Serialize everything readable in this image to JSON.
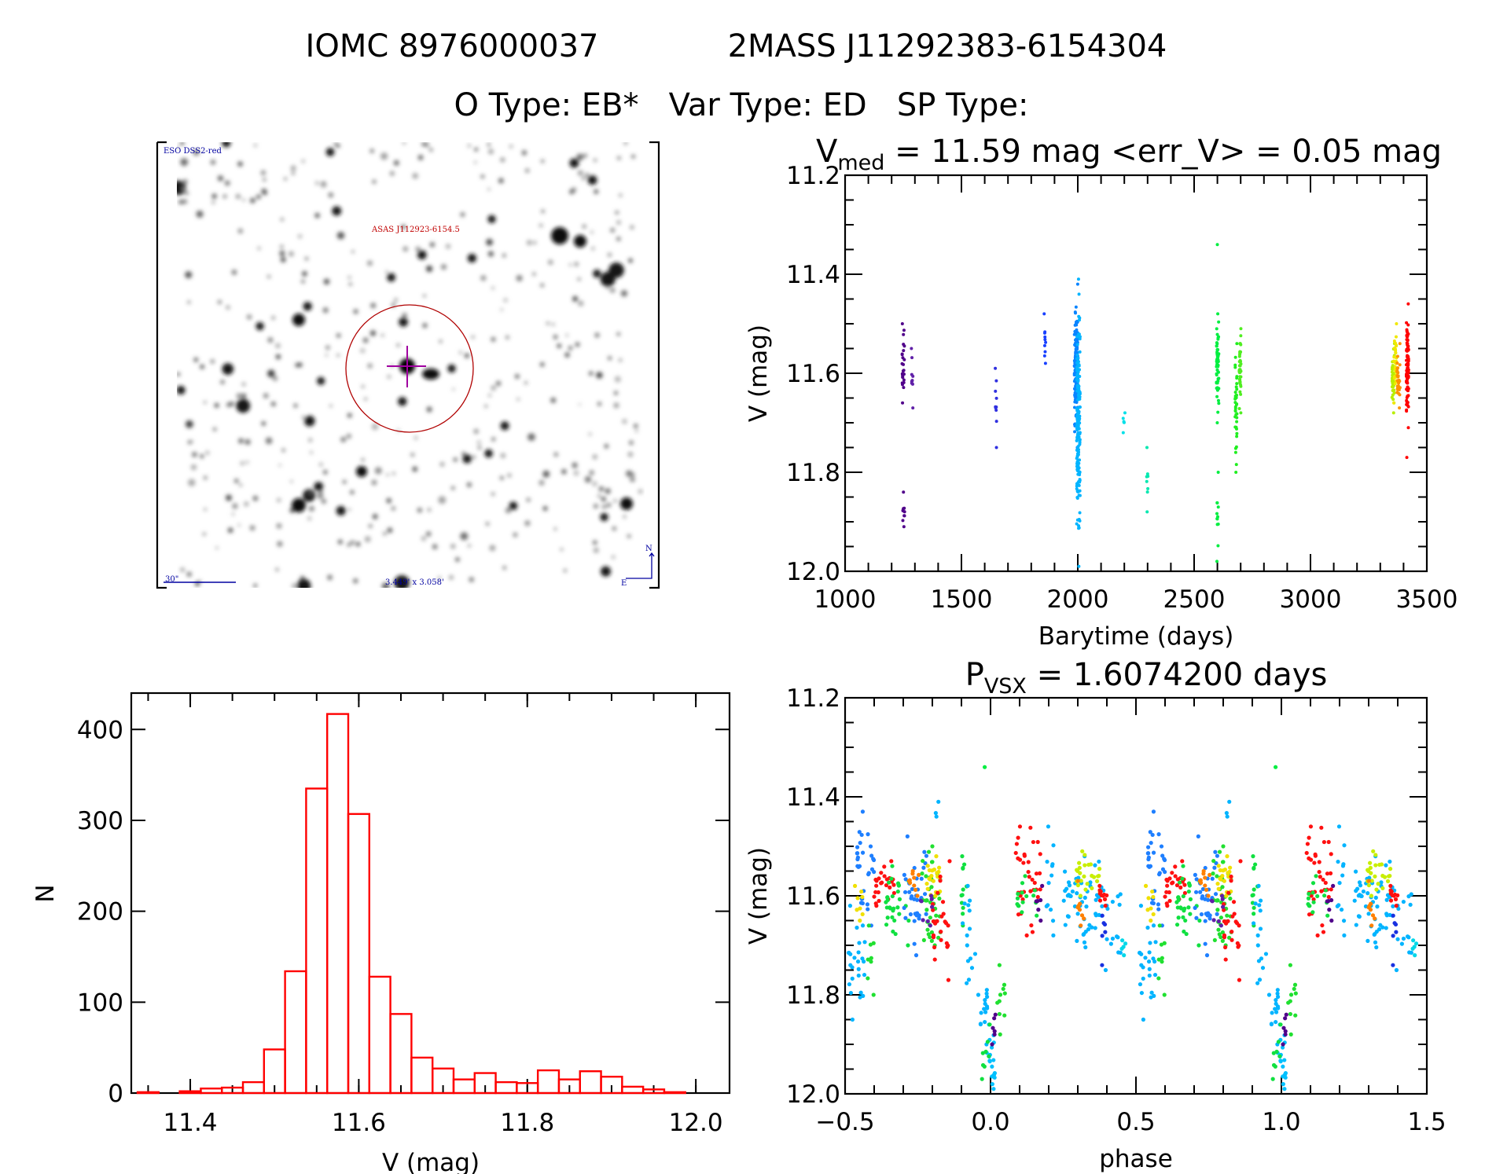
{
  "header": {
    "title_left": "IOMC 8976000037",
    "title_right": "2MASS J11292383-6154304",
    "subtitle": "O Type: EB*   Var Type: ED   SP Type:"
  },
  "finder": {
    "survey": "ESO DSS2-red",
    "target": "ASAS J112923-6154.5",
    "scale_bar": "30\"",
    "field_size": "3.449' x 3.058'",
    "north": "N",
    "east": "E",
    "circle_color": "#b00000",
    "crosshair_color": "#a000a0",
    "label_color": "#0000a0"
  },
  "chart_data": [
    {
      "id": "light-curve",
      "type": "scatter",
      "title_main": "V",
      "title_sub": "med",
      "title_rest": " = 11.59 mag <err_V> = 0.05 mag",
      "xlabel": "Barytime (days)",
      "ylabel": "V (mag)",
      "xlim": [
        1000,
        3500
      ],
      "ylim": [
        12.0,
        11.2
      ],
      "y_inverted": true,
      "xticks": [
        "1000",
        "1500",
        "2000",
        "2500",
        "3000",
        "3500"
      ],
      "yticks": [
        "11.2",
        "11.4",
        "11.6",
        "11.8",
        "12.0"
      ],
      "color_coding": "rainbow by time",
      "clusters": [
        {
          "t": [
            1245,
            1255
          ],
          "v": [
            11.5,
            11.66
          ],
          "n": 25,
          "color": "#50008a"
        },
        {
          "t": [
            1248,
            1256
          ],
          "v": [
            11.84,
            11.91
          ],
          "n": 10,
          "color": "#50008a"
        },
        {
          "t": [
            1285,
            1292
          ],
          "v": [
            11.55,
            11.67
          ],
          "n": 10,
          "color": "#6020a8"
        },
        {
          "t": [
            1645,
            1652
          ],
          "v": [
            11.59,
            11.75
          ],
          "n": 10,
          "color": "#3030e0"
        },
        {
          "t": [
            1855,
            1862
          ],
          "v": [
            11.48,
            11.58
          ],
          "n": 10,
          "color": "#1840ff"
        },
        {
          "t": [
            1985,
            2000
          ],
          "v": [
            11.42,
            11.75
          ],
          "n": 160,
          "color": "#0a84ff"
        },
        {
          "t": [
            1995,
            2010
          ],
          "v": [
            11.41,
            11.99
          ],
          "n": 180,
          "color": "#00b4ff"
        },
        {
          "t": [
            2195,
            2203
          ],
          "v": [
            11.68,
            11.72
          ],
          "n": 6,
          "color": "#00e0e8"
        },
        {
          "t": [
            2296,
            2302
          ],
          "v": [
            11.75,
            11.88
          ],
          "n": 8,
          "color": "#00e8b0"
        },
        {
          "t": [
            2598,
            2604
          ],
          "v": [
            11.34,
            11.34
          ],
          "n": 1,
          "color": "#00ee40"
        },
        {
          "t": [
            2596,
            2606
          ],
          "v": [
            11.48,
            11.7
          ],
          "n": 60,
          "color": "#00ee40"
        },
        {
          "t": [
            2598,
            2604
          ],
          "v": [
            11.8,
            11.98
          ],
          "n": 12,
          "color": "#00ee40"
        },
        {
          "t": [
            2676,
            2684
          ],
          "v": [
            11.54,
            11.8
          ],
          "n": 40,
          "color": "#20ee20"
        },
        {
          "t": [
            2694,
            2702
          ],
          "v": [
            11.51,
            11.68
          ],
          "n": 40,
          "color": "#50ee20"
        },
        {
          "t": [
            3350,
            3362
          ],
          "v": [
            11.54,
            11.68
          ],
          "n": 40,
          "color": "#b8ee00"
        },
        {
          "t": [
            3358,
            3370
          ],
          "v": [
            11.5,
            11.66
          ],
          "n": 35,
          "color": "#f0e800"
        },
        {
          "t": [
            3372,
            3385
          ],
          "v": [
            11.54,
            11.67
          ],
          "n": 30,
          "color": "#ff9000"
        },
        {
          "t": [
            3412,
            3422
          ],
          "v": [
            11.46,
            11.71
          ],
          "n": 100,
          "color": "#ff0000"
        },
        {
          "t": [
            3414,
            3420
          ],
          "v": [
            11.77,
            11.77
          ],
          "n": 1,
          "color": "#ff0000"
        }
      ]
    },
    {
      "id": "phase-curve",
      "type": "scatter",
      "title_main": "P",
      "title_sub": "VSX",
      "title_rest": " = 1.6074200 days",
      "xlabel": "phase",
      "ylabel": "V (mag)",
      "xlim": [
        -0.5,
        1.5
      ],
      "ylim": [
        12.0,
        11.2
      ],
      "y_inverted": true,
      "period_days": 1.60742,
      "xticks": [
        "−0.5",
        "0.0",
        "0.5",
        "1.0",
        "1.5"
      ],
      "yticks": [
        "11.2",
        "11.4",
        "11.6",
        "11.8",
        "12.0"
      ],
      "repeat_offset": 1.0,
      "clusters": [
        {
          "p": [
            -0.49,
            -0.43
          ],
          "v": [
            11.62,
            11.85
          ],
          "n": 25,
          "color": "#00b4ff"
        },
        {
          "p": [
            -0.46,
            -0.4
          ],
          "v": [
            11.43,
            11.66
          ],
          "n": 30,
          "color": "#1e7fff"
        },
        {
          "p": [
            -0.47,
            -0.44
          ],
          "v": [
            11.58,
            11.65
          ],
          "n": 8,
          "color": "#f0e000"
        },
        {
          "p": [
            -0.43,
            -0.4
          ],
          "v": [
            11.66,
            11.8
          ],
          "n": 8,
          "color": "#20e030"
        },
        {
          "p": [
            -0.4,
            -0.33
          ],
          "v": [
            11.53,
            11.62
          ],
          "n": 25,
          "color": "#ff1010"
        },
        {
          "p": [
            -0.36,
            -0.28
          ],
          "v": [
            11.54,
            11.7
          ],
          "n": 30,
          "color": "#10e040"
        },
        {
          "p": [
            -0.3,
            -0.22
          ],
          "v": [
            11.48,
            11.72
          ],
          "n": 35,
          "color": "#1e7fff"
        },
        {
          "p": [
            -0.28,
            -0.24
          ],
          "v": [
            11.55,
            11.6
          ],
          "n": 10,
          "color": "#ff8000"
        },
        {
          "p": [
            -0.24,
            -0.17
          ],
          "v": [
            11.5,
            11.7
          ],
          "n": 40,
          "color": "#20e030"
        },
        {
          "p": [
            -0.22,
            -0.17
          ],
          "v": [
            11.52,
            11.6
          ],
          "n": 20,
          "color": "#f0e000"
        },
        {
          "p": [
            -0.2,
            -0.14
          ],
          "v": [
            11.53,
            11.77
          ],
          "n": 25,
          "color": "#ff1010"
        },
        {
          "p": [
            -0.19,
            -0.17
          ],
          "v": [
            11.41,
            11.44
          ],
          "n": 3,
          "color": "#00b4ff"
        },
        {
          "p": [
            -0.24,
            -0.2
          ],
          "v": [
            11.6,
            11.66
          ],
          "n": 8,
          "color": "#6020a8"
        },
        {
          "p": [
            -0.1,
            -0.08
          ],
          "v": [
            11.52,
            11.66
          ],
          "n": 12,
          "color": "#10e040"
        },
        {
          "p": [
            -0.1,
            -0.07
          ],
          "v": [
            11.58,
            11.68
          ],
          "n": 8,
          "color": "#00b4ff"
        },
        {
          "p": [
            -0.02,
            -0.02
          ],
          "v": [
            11.34,
            11.34
          ],
          "n": 1,
          "color": "#00ee40"
        },
        {
          "p": [
            -0.09,
            -0.04
          ],
          "v": [
            11.7,
            11.8
          ],
          "n": 8,
          "color": "#00b4ff"
        },
        {
          "p": [
            -0.04,
            -0.01
          ],
          "v": [
            11.79,
            11.9
          ],
          "n": 14,
          "color": "#00b4ff"
        },
        {
          "p": [
            -0.015,
            0.015
          ],
          "v": [
            11.86,
            11.99
          ],
          "n": 18,
          "color": "#00c0ff"
        },
        {
          "p": [
            -0.03,
            0.0
          ],
          "v": [
            11.86,
            11.97
          ],
          "n": 8,
          "color": "#10e040"
        },
        {
          "p": [
            0.0,
            0.02
          ],
          "v": [
            11.84,
            11.9
          ],
          "n": 6,
          "color": "#50008a"
        },
        {
          "p": [
            0.02,
            0.05
          ],
          "v": [
            11.74,
            11.88
          ],
          "n": 10,
          "color": "#20e030"
        },
        {
          "p": [
            0.08,
            0.18
          ],
          "v": [
            11.46,
            11.68
          ],
          "n": 35,
          "color": "#ff1010"
        },
        {
          "p": [
            0.09,
            0.16
          ],
          "v": [
            11.56,
            11.64
          ],
          "n": 15,
          "color": "#10e040"
        },
        {
          "p": [
            0.15,
            0.18
          ],
          "v": [
            11.58,
            11.65
          ],
          "n": 6,
          "color": "#50008a"
        },
        {
          "p": [
            0.19,
            0.22
          ],
          "v": [
            11.46,
            11.68
          ],
          "n": 12,
          "color": "#00b4ff"
        },
        {
          "p": [
            0.25,
            0.45
          ],
          "v": [
            11.52,
            11.75
          ],
          "n": 70,
          "color": "#00b4ff"
        },
        {
          "p": [
            0.29,
            0.38
          ],
          "v": [
            11.51,
            11.6
          ],
          "n": 25,
          "color": "#c8ee00"
        },
        {
          "p": [
            0.3,
            0.33
          ],
          "v": [
            11.57,
            11.66
          ],
          "n": 8,
          "color": "#ff8000"
        },
        {
          "p": [
            0.37,
            0.4
          ],
          "v": [
            11.58,
            11.62
          ],
          "n": 12,
          "color": "#ff1010"
        },
        {
          "p": [
            0.38,
            0.4
          ],
          "v": [
            11.64,
            11.74
          ],
          "n": 6,
          "color": "#1830e0"
        },
        {
          "p": [
            0.45,
            0.47
          ],
          "v": [
            11.69,
            11.72
          ],
          "n": 5,
          "color": "#00d8e8"
        }
      ]
    },
    {
      "id": "histogram",
      "type": "bar",
      "style": "step outline",
      "bar_color": "#ff0000",
      "xlabel": "V (mag)",
      "ylabel": "N",
      "xlim": [
        11.33,
        12.04
      ],
      "ylim": [
        0,
        440
      ],
      "xticks": [
        "11.4",
        "11.6",
        "11.8",
        "12.0"
      ],
      "yticks": [
        "0",
        "100",
        "200",
        "300",
        "400"
      ],
      "bin_start": 11.3375,
      "bin_width": 0.025,
      "values": [
        1,
        0,
        2,
        5,
        6,
        12,
        48,
        134,
        335,
        417,
        307,
        128,
        87,
        39,
        27,
        15,
        22,
        12,
        11,
        25,
        15,
        24,
        18,
        7,
        4,
        1
      ]
    }
  ]
}
